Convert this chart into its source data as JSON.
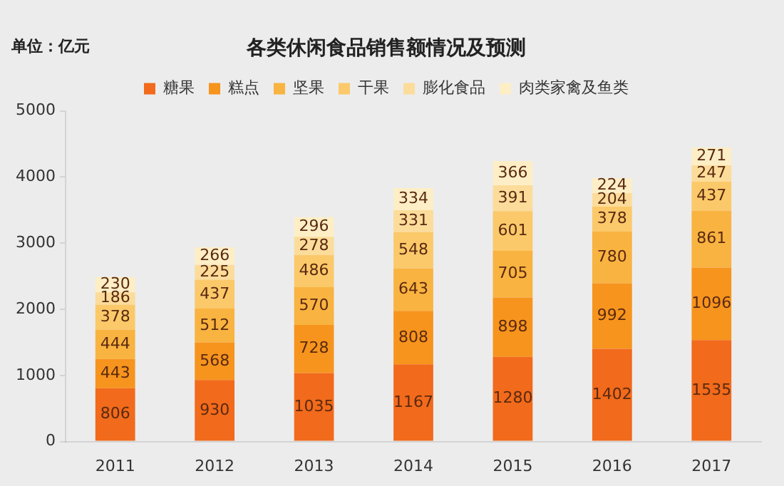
{
  "chart_data": {
    "type": "bar",
    "title": "各类休闲食品销售额情况及预测",
    "ylabel": "单位：亿元",
    "stacked": true,
    "data_labels": true,
    "legend": "top",
    "grid": false,
    "categories": [
      "2011",
      "2012",
      "2013",
      "2014",
      "2015",
      "2016",
      "2017"
    ],
    "ylim": [
      0,
      5000
    ],
    "yticks": [
      0,
      1000,
      2000,
      3000,
      4000,
      5000
    ],
    "series": [
      {
        "name": "糖果",
        "color": "#f26a1b",
        "values": [
          806,
          930,
          1035,
          1167,
          1280,
          1402,
          1535
        ]
      },
      {
        "name": "糕点",
        "color": "#f7941d",
        "values": [
          443,
          568,
          728,
          808,
          898,
          992,
          1096
        ]
      },
      {
        "name": "坚果",
        "color": "#f9b340",
        "values": [
          444,
          512,
          570,
          643,
          705,
          780,
          861
        ]
      },
      {
        "name": "干果",
        "color": "#fbc96a",
        "values": [
          378,
          437,
          486,
          548,
          601,
          378,
          437
        ]
      },
      {
        "name": "膨化食品",
        "color": "#fcdc9a",
        "values": [
          186,
          225,
          278,
          331,
          391,
          204,
          247
        ]
      },
      {
        "name": "肉类家禽及鱼类",
        "color": "#fdeec6",
        "values": [
          230,
          266,
          296,
          334,
          366,
          224,
          271
        ]
      }
    ]
  }
}
